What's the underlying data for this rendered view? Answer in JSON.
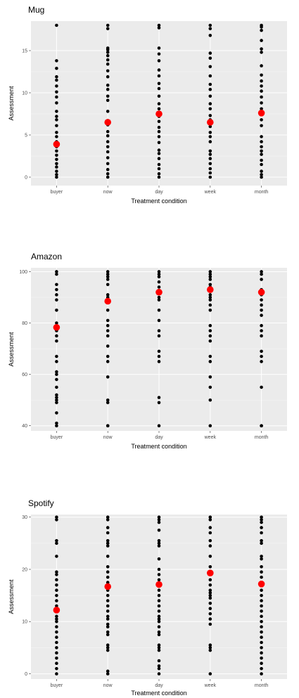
{
  "chart_data": [
    {
      "type": "scatter",
      "title": "Mug",
      "xlabel": "Treatment condition",
      "ylabel": "Assessment",
      "categories": [
        "buyer",
        "now",
        "day",
        "week",
        "month"
      ],
      "ylim": [
        -1,
        18.5
      ],
      "yticks": [
        0,
        5,
        10,
        15
      ],
      "grid": true,
      "series": [
        {
          "values": [
            [
              0,
              0.3,
              0.7,
              1.2,
              1.6,
              2.1,
              2.6,
              3.1,
              3.6,
              4.2,
              4.8,
              5.3,
              6.1,
              6.8,
              7.2,
              7.8,
              8.8,
              9.5,
              10.1,
              10.8,
              11.5,
              11.9,
              12.9,
              13.8,
              18.0
            ],
            [
              0,
              0.4,
              0.9,
              1.6,
              2.3,
              3.0,
              3.6,
              4.2,
              4.9,
              5.4,
              6.2,
              6.7,
              7.8,
              9.1,
              9.6,
              10.4,
              10.9,
              11.9,
              12.6,
              13.4,
              13.9,
              14.4,
              14.8,
              15.1,
              15.3,
              17.6,
              18.0
            ],
            [
              0,
              0.4,
              1.0,
              1.5,
              2.2,
              2.8,
              3.2,
              4.1,
              4.8,
              5.4,
              5.9,
              6.6,
              7.2,
              8.1,
              8.7,
              9.6,
              10.5,
              11.1,
              12.0,
              12.7,
              13.8,
              14.6,
              15.3,
              17.7,
              18.0
            ],
            [
              0,
              0.5,
              1.0,
              1.6,
              2.2,
              2.7,
              3.1,
              4.2,
              4.8,
              5.3,
              6.0,
              6.8,
              7.3,
              8.1,
              8.7,
              9.6,
              10.4,
              11.0,
              12.0,
              13.1,
              14.1,
              14.7,
              16.8,
              17.6,
              18.0
            ],
            [
              0,
              0.3,
              0.7,
              1.5,
              2.0,
              2.7,
              3.1,
              3.6,
              4.2,
              4.8,
              6.1,
              6.8,
              8.1,
              8.8,
              9.5,
              10.2,
              10.8,
              11.4,
              12.1,
              13.2,
              14.8,
              15.2,
              16.2,
              17.4,
              17.8,
              18.0
            ]
          ]
        },
        {
          "name": "mean",
          "values": [
            3.9,
            6.5,
            7.5,
            6.5,
            7.6
          ]
        }
      ]
    },
    {
      "type": "scatter",
      "title": "Amazon",
      "xlabel": "Treatment condition",
      "ylabel": "Assessment",
      "categories": [
        "buyer",
        "now",
        "day",
        "week",
        "month"
      ],
      "ylim": [
        38,
        101.5
      ],
      "yticks": [
        40,
        60,
        80,
        100
      ],
      "grid": true,
      "series": [
        {
          "values": [
            [
              40,
              41,
              45,
              49,
              50,
              51,
              52,
              55,
              58,
              60,
              61,
              65,
              67,
              73,
              75,
              77,
              80,
              85,
              89,
              91,
              93,
              95,
              99,
              100
            ],
            [
              40,
              40,
              49,
              50,
              59,
              65,
              67,
              71,
              75,
              77,
              79,
              81,
              85,
              89,
              90,
              91,
              95,
              97,
              98,
              99,
              100
            ],
            [
              40,
              49,
              51,
              65,
              67,
              69,
              75,
              77,
              81,
              85,
              89,
              90,
              94,
              96,
              98,
              99,
              100
            ],
            [
              40,
              50,
              55,
              59,
              65,
              67,
              73,
              75,
              77,
              79,
              85,
              87,
              89,
              90,
              91,
              94,
              95,
              97,
              98,
              99,
              100
            ],
            [
              40,
              40,
              55,
              65,
              67,
              69,
              75,
              77,
              79,
              83,
              85,
              87,
              89,
              91,
              93,
              97,
              99,
              100
            ]
          ]
        },
        {
          "name": "mean",
          "values": [
            78.3,
            88.5,
            92.0,
            93.0,
            92.0
          ]
        }
      ]
    },
    {
      "type": "scatter",
      "title": "Spotify",
      "xlabel": "Treatment condition",
      "ylabel": "Assessment",
      "categories": [
        "buyer",
        "now",
        "day",
        "week",
        "month"
      ],
      "ylim": [
        -1,
        30.5
      ],
      "yticks": [
        0,
        10,
        20,
        30
      ],
      "grid": true,
      "series": [
        {
          "values": [
            [
              0,
              1,
              2,
              3,
              4,
              5,
              6,
              7,
              8,
              9,
              10,
              10.5,
              11,
              12,
              13,
              14,
              15,
              16,
              17,
              18,
              19,
              19.5,
              22.5,
              25,
              25.5,
              29.5,
              30
            ],
            [
              0,
              0.5,
              4.5,
              5,
              5.5,
              7.5,
              8,
              9,
              9.5,
              10.5,
              11,
              12,
              13,
              14,
              15,
              16,
              17,
              17.5,
              18.5,
              19.5,
              20.5,
              22.5,
              24.5,
              25,
              25.5,
              27,
              28,
              29.5,
              30
            ],
            [
              0,
              1,
              1.5,
              2.5,
              4.5,
              5,
              5.5,
              7.5,
              8,
              9,
              10,
              10.5,
              11,
              12,
              13,
              14,
              15,
              16,
              17,
              18,
              19,
              20,
              22,
              24.5,
              25,
              25.5,
              27.5,
              29,
              29.5,
              30
            ],
            [
              0,
              4.5,
              5,
              5.5,
              9.5,
              10.5,
              11.5,
              12.5,
              13.5,
              14.5,
              15,
              15.5,
              16,
              17,
              18,
              19.5,
              20.5,
              22.5,
              24.5,
              25.5,
              27,
              28,
              29.5,
              30
            ],
            [
              0,
              1,
              2,
              3,
              4,
              5,
              6,
              7,
              8,
              9,
              10,
              11,
              12,
              13,
              14,
              15,
              16,
              17,
              17.5,
              18.5,
              19.5,
              20.5,
              22,
              22.5,
              25,
              25.5,
              27,
              28,
              29,
              29.5,
              30
            ]
          ]
        },
        {
          "name": "mean",
          "values": [
            12.2,
            16.7,
            17.1,
            19.3,
            17.2
          ]
        }
      ]
    }
  ]
}
